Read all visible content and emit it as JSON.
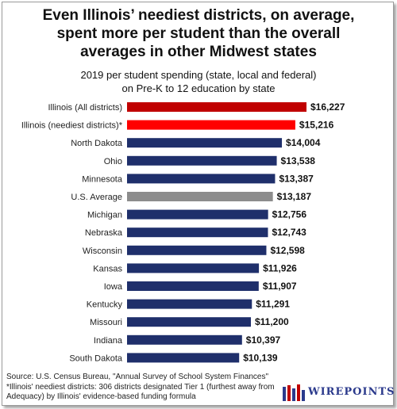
{
  "title_lines": [
    "Even Illinois’ neediest districts, on average,",
    "spent more per student than the overall",
    "averages in other Midwest states"
  ],
  "subtitle_lines": [
    "2019 per student spending (state, local and federal)",
    "on Pre-K to 12 education by state"
  ],
  "chart_data": {
    "type": "bar",
    "orientation": "horizontal",
    "title": "Even Illinois’ neediest districts, on average, spent more per student than the overall averages in other Midwest states",
    "subtitle": "2019 per student spending (state, local and federal) on Pre-K to 12 education by state",
    "categories": [
      "Illinois (All districts)",
      "Illinois (neediest districts)*",
      "North Dakota",
      "Ohio",
      "Minnesota",
      "U.S. Average",
      "Michigan",
      "Nebraska",
      "Wisconsin",
      "Kansas",
      "Iowa",
      "Kentucky",
      "Missouri",
      "Indiana",
      "South Dakota"
    ],
    "values": [
      16227,
      15216,
      14004,
      13538,
      13387,
      13187,
      12756,
      12743,
      12598,
      11926,
      11907,
      11291,
      11200,
      10397,
      10139
    ],
    "value_labels": [
      "$16,227",
      "$15,216",
      "$14,004",
      "$13,538",
      "$13,387",
      "$13,187",
      "$12,756",
      "$12,743",
      "$12,598",
      "$11,926",
      "$11,907",
      "$11,291",
      "$11,200",
      "$10,397",
      "$10,139"
    ],
    "bar_colors": [
      "#c00000",
      "#ff0000",
      "#1f2f6b",
      "#1f2f6b",
      "#1f2f6b",
      "#8c8c8c",
      "#1f2f6b",
      "#1f2f6b",
      "#1f2f6b",
      "#1f2f6b",
      "#1f2f6b",
      "#1f2f6b",
      "#1f2f6b",
      "#1f2f6b",
      "#1f2f6b"
    ],
    "xlim": [
      0,
      16227
    ],
    "xlabel": "",
    "ylabel": "",
    "grid": false,
    "legend": "none"
  },
  "footnotes": [
    "Source: U.S. Census Bureau, \"Annual Survey of School System Finances\"",
    "*Illinois' neediest districts: 306 districts designated Tier 1 (furthest away from",
    "Adequacy) by Illinois' evidence-based funding formula"
  ],
  "logo": {
    "text": "WIREPOINTS",
    "colors": [
      "#2b3a8c",
      "#c00000"
    ]
  }
}
